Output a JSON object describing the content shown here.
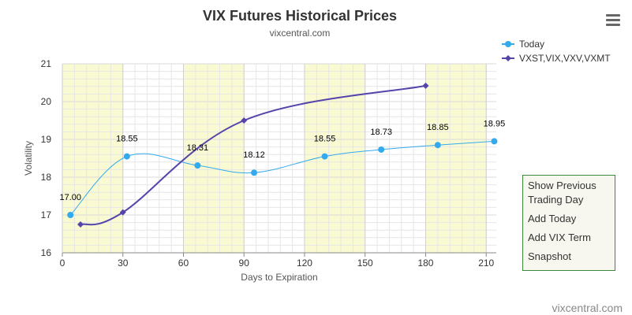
{
  "menu": {
    "icon": "hamburger-menu-icon"
  },
  "side_panel": {
    "items": [
      {
        "label": "Show Previous Trading Day"
      },
      {
        "label": "Add Today"
      },
      {
        "label": "Add VIX Term"
      },
      {
        "label": "Snapshot"
      }
    ]
  },
  "colors": {
    "today": "#33aaee",
    "term": "#5544aa",
    "band": "#fafad2",
    "grid": "#e6e6e6",
    "panel_border": "#3b8a3b"
  },
  "chart_data": {
    "type": "line",
    "title": "VIX Futures Historical Prices",
    "subtitle": "vixcentral.com",
    "credit": "vixcentral.com",
    "xlabel": "Days to Expiration",
    "ylabel": "Volatility",
    "xlim": [
      0,
      215
    ],
    "ylim": [
      16,
      21
    ],
    "x_ticks": [
      0,
      30,
      60,
      90,
      120,
      150,
      180,
      210
    ],
    "y_ticks": [
      16,
      17,
      18,
      19,
      20,
      21
    ],
    "bands": [
      [
        0,
        30
      ],
      [
        60,
        90
      ],
      [
        120,
        150
      ],
      [
        180,
        210
      ]
    ],
    "legend_position": "top-right",
    "grid": true,
    "series": [
      {
        "name": "Today",
        "color": "#33aaee",
        "marker": "circle",
        "points": [
          {
            "x": 4,
            "y": 17.0,
            "label": "17.00"
          },
          {
            "x": 32,
            "y": 18.55,
            "label": "18.55"
          },
          {
            "x": 67,
            "y": 18.31,
            "label": "18.31"
          },
          {
            "x": 95,
            "y": 18.12,
            "label": "18.12"
          },
          {
            "x": 130,
            "y": 18.55,
            "label": "18.55"
          },
          {
            "x": 158,
            "y": 18.73,
            "label": "18.73"
          },
          {
            "x": 186,
            "y": 18.85,
            "label": "18.85"
          },
          {
            "x": 214,
            "y": 18.95,
            "label": "18.95"
          }
        ]
      },
      {
        "name": "VXST,VIX,VXV,VXMT",
        "color": "#5544aa",
        "marker": "diamond",
        "points": [
          {
            "x": 9,
            "y": 16.75
          },
          {
            "x": 30,
            "y": 17.07
          },
          {
            "x": 90,
            "y": 19.5
          },
          {
            "x": 180,
            "y": 20.42
          }
        ]
      }
    ]
  }
}
